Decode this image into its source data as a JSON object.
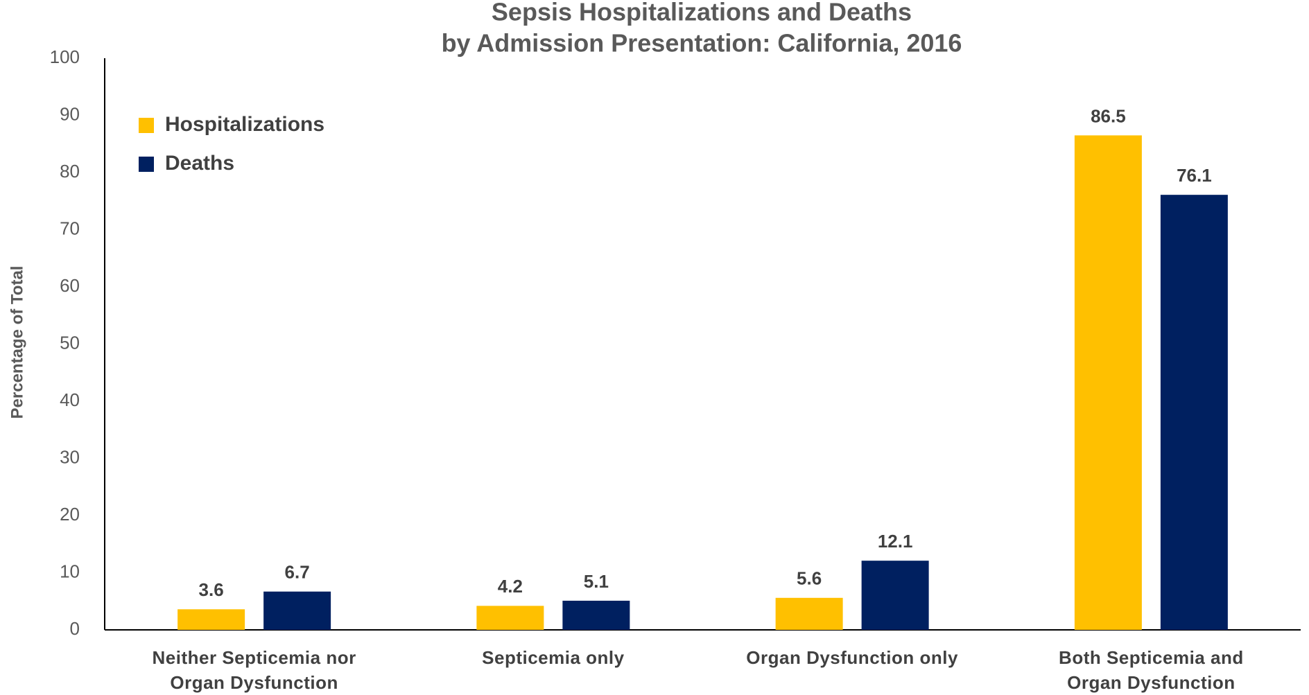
{
  "chart_data": {
    "type": "bar",
    "title": "Sepsis Hospitalizations and Deaths",
    "subtitle": "by Admission Presentation: California, 2016",
    "y_label": "Percentage of Total",
    "categories": [
      "Neither Septicemia nor\nOrgan Dysfunction",
      "Septicemia only",
      "Organ Dysfunction only",
      "Both Septicemia and\nOrgan Dysfunction"
    ],
    "series": [
      {
        "name": "Hospitalizations",
        "color": "#ffc000",
        "values": [
          3.6,
          4.2,
          5.6,
          86.5
        ]
      },
      {
        "name": "Deaths",
        "color": "#002060",
        "values": [
          6.7,
          5.1,
          12.1,
          76.1
        ]
      }
    ],
    "ylim": [
      0,
      100
    ],
    "yticks": [
      0,
      10,
      20,
      30,
      40,
      50,
      60,
      70,
      80,
      90,
      100
    ],
    "grid": false,
    "legend": "top-left"
  }
}
